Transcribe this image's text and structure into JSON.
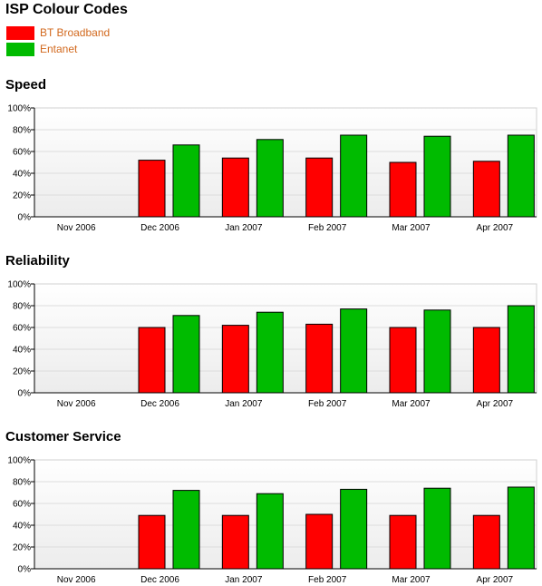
{
  "page": {
    "title": "ISP Colour Codes"
  },
  "legend": [
    {
      "label": "BT Broadband",
      "color": "#ff0000"
    },
    {
      "label": "Entanet",
      "color": "#00bb00"
    }
  ],
  "chart_data": [
    {
      "type": "bar",
      "title": "Speed",
      "categories": [
        "Nov 2006",
        "Dec 2006",
        "Jan 2007",
        "Feb 2007",
        "Mar 2007",
        "Apr 2007"
      ],
      "series": [
        {
          "name": "BT Broadband",
          "color": "#ff0000",
          "values": [
            null,
            52,
            54,
            54,
            50,
            51
          ]
        },
        {
          "name": "Entanet",
          "color": "#00bb00",
          "values": [
            null,
            66,
            71,
            75,
            74,
            75
          ]
        }
      ],
      "ylim": [
        0,
        100
      ],
      "yticks": [
        "0%",
        "20%",
        "40%",
        "60%",
        "80%",
        "100%"
      ],
      "grid": true
    },
    {
      "type": "bar",
      "title": "Reliability",
      "categories": [
        "Nov 2006",
        "Dec 2006",
        "Jan 2007",
        "Feb 2007",
        "Mar 2007",
        "Apr 2007"
      ],
      "series": [
        {
          "name": "BT Broadband",
          "color": "#ff0000",
          "values": [
            null,
            60,
            62,
            63,
            60,
            60
          ]
        },
        {
          "name": "Entanet",
          "color": "#00bb00",
          "values": [
            null,
            71,
            74,
            77,
            76,
            80
          ]
        }
      ],
      "ylim": [
        0,
        100
      ],
      "yticks": [
        "0%",
        "20%",
        "40%",
        "60%",
        "80%",
        "100%"
      ],
      "grid": true
    },
    {
      "type": "bar",
      "title": "Customer Service",
      "categories": [
        "Nov 2006",
        "Dec 2006",
        "Jan 2007",
        "Feb 2007",
        "Mar 2007",
        "Apr 2007"
      ],
      "series": [
        {
          "name": "BT Broadband",
          "color": "#ff0000",
          "values": [
            null,
            49,
            49,
            50,
            49,
            49
          ]
        },
        {
          "name": "Entanet",
          "color": "#00bb00",
          "values": [
            null,
            72,
            69,
            73,
            74,
            75
          ]
        }
      ],
      "ylim": [
        0,
        100
      ],
      "yticks": [
        "0%",
        "20%",
        "40%",
        "60%",
        "80%",
        "100%"
      ],
      "grid": true
    }
  ]
}
